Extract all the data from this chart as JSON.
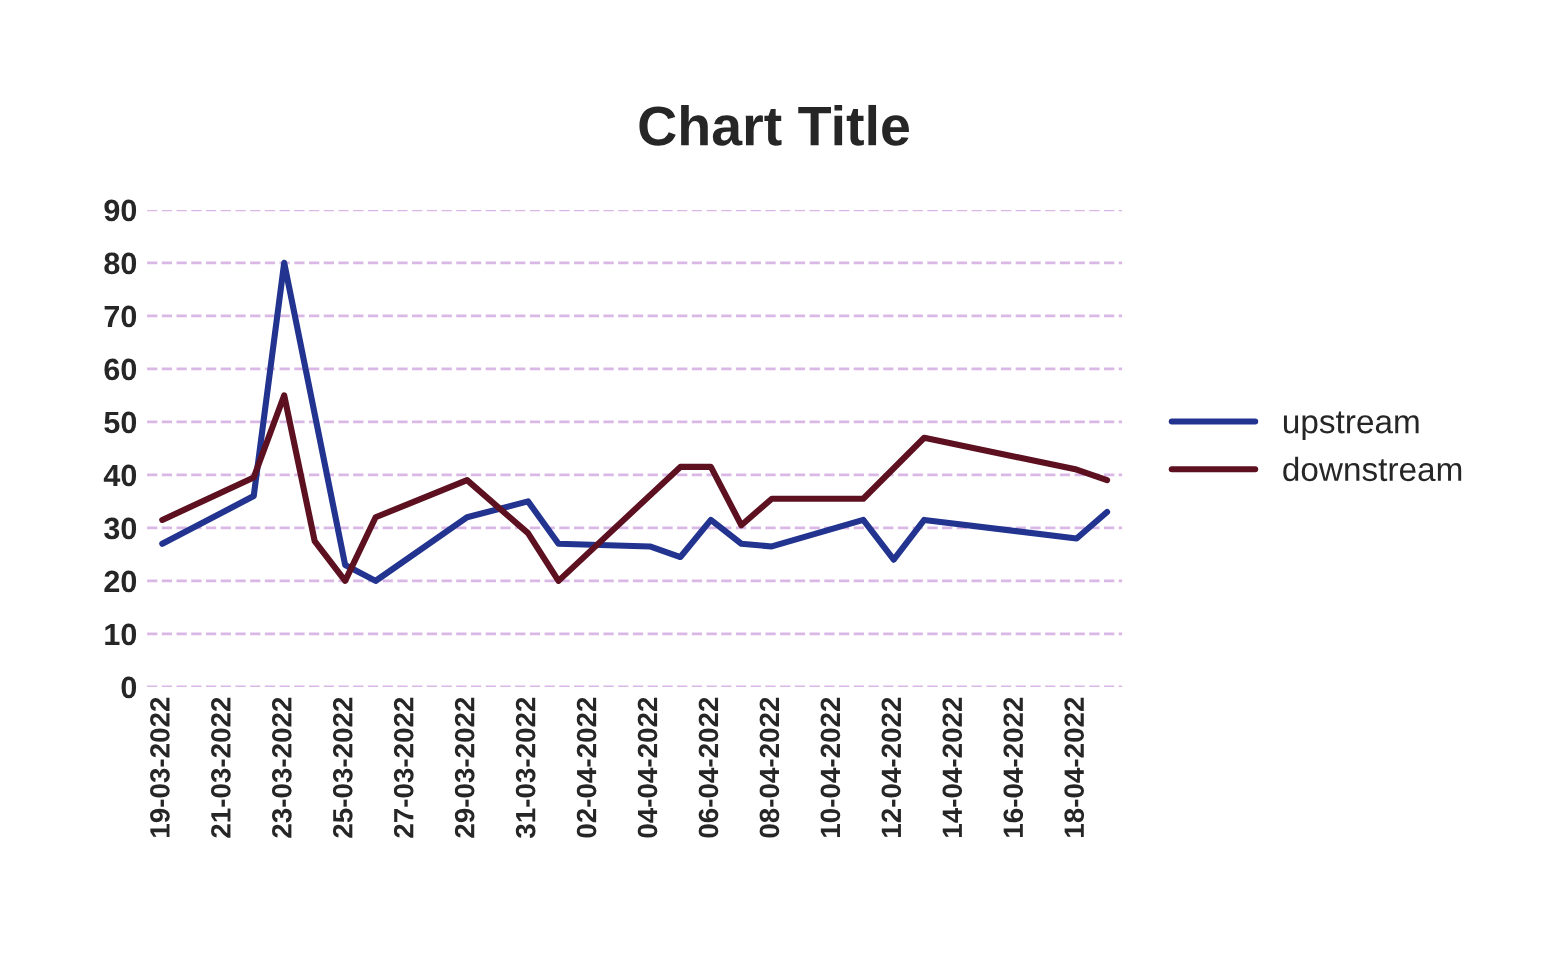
{
  "chart_data": {
    "type": "line",
    "title": "Chart Title",
    "series": [
      {
        "name": "upstream",
        "color": "#22348f",
        "x": [
          "2022-03-19",
          "2022-03-22",
          "2022-03-23",
          "2022-03-25",
          "2022-03-26",
          "2022-03-29",
          "2022-03-31",
          "2022-04-01",
          "2022-04-04",
          "2022-04-05",
          "2022-04-06",
          "2022-04-07",
          "2022-04-08",
          "2022-04-11",
          "2022-04-12",
          "2022-04-13",
          "2022-04-18",
          "2022-04-19"
        ],
        "values": [
          27,
          36,
          80,
          23,
          20,
          32,
          35,
          27,
          26.5,
          24.5,
          31.5,
          27,
          26.5,
          31.5,
          24,
          31.5,
          28,
          33
        ]
      },
      {
        "name": "downstream",
        "color": "#5c1020",
        "x": [
          "2022-03-19",
          "2022-03-22",
          "2022-03-23",
          "2022-03-24",
          "2022-03-25",
          "2022-03-26",
          "2022-03-29",
          "2022-03-31",
          "2022-04-01",
          "2022-04-05",
          "2022-04-06",
          "2022-04-07",
          "2022-04-08",
          "2022-04-11",
          "2022-04-13",
          "2022-04-18",
          "2022-04-19"
        ],
        "values": [
          31.5,
          39.5,
          55,
          27.5,
          20,
          32,
          39,
          29,
          20,
          41.5,
          41.5,
          30.5,
          35.5,
          35.5,
          47,
          41,
          39
        ]
      }
    ],
    "xlim": [
      "2022-03-18T12:00",
      "2022-04-19T12:00"
    ],
    "xticks": [
      {
        "value": "2022-03-19",
        "label": "19-03-2022"
      },
      {
        "value": "2022-03-21",
        "label": "21-03-2022"
      },
      {
        "value": "2022-03-23",
        "label": "23-03-2022"
      },
      {
        "value": "2022-03-25",
        "label": "25-03-2022"
      },
      {
        "value": "2022-03-27",
        "label": "27-03-2022"
      },
      {
        "value": "2022-03-29",
        "label": "29-03-2022"
      },
      {
        "value": "2022-03-31",
        "label": "31-03-2022"
      },
      {
        "value": "2022-04-02",
        "label": "02-04-2022"
      },
      {
        "value": "2022-04-04",
        "label": "04-04-2022"
      },
      {
        "value": "2022-04-06",
        "label": "06-04-2022"
      },
      {
        "value": "2022-04-08",
        "label": "08-04-2022"
      },
      {
        "value": "2022-04-10",
        "label": "10-04-2022"
      },
      {
        "value": "2022-04-12",
        "label": "12-04-2022"
      },
      {
        "value": "2022-04-14",
        "label": "14-04-2022"
      },
      {
        "value": "2022-04-16",
        "label": "16-04-2022"
      },
      {
        "value": "2022-04-18",
        "label": "18-04-2022"
      }
    ],
    "ylim": [
      0,
      90
    ],
    "yticks": [
      0,
      10,
      20,
      30,
      40,
      50,
      60,
      70,
      80,
      90
    ],
    "grid": "y",
    "legend": "right",
    "marker": "none",
    "line_style": "solid"
  }
}
